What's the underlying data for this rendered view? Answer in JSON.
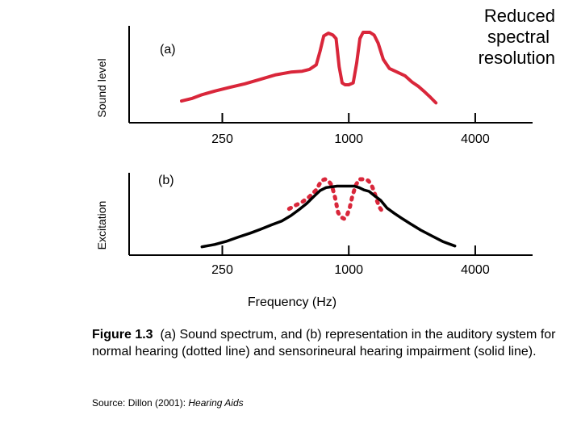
{
  "colors": {
    "spectrum": "#d9263a",
    "normal": "#d9263a",
    "impaired": "#000000",
    "axis": "#000000",
    "annotation": "#000000"
  },
  "chart_data": [
    {
      "id": "a",
      "type": "line",
      "panel_label": "(a)",
      "ylabel": "Sound level",
      "xlabel": "",
      "xscale": "log",
      "xlim": [
        90,
        7500
      ],
      "ylim": [
        0,
        1
      ],
      "xticks": [
        250,
        1000,
        4000
      ],
      "xtick_labels": [
        "250",
        "1000",
        "4000"
      ],
      "annotation": [
        "Reduced",
        "spectral",
        "resolution"
      ],
      "series": [
        {
          "name": "Sound spectrum",
          "style": "solid",
          "color": "#d9263a",
          "x": [
            160,
            180,
            200,
            230,
            270,
            320,
            380,
            450,
            530,
            600,
            650,
            700,
            730,
            760,
            800,
            840,
            870,
            900,
            930,
            960,
            1000,
            1050,
            1090,
            1130,
            1170,
            1210,
            1260,
            1320,
            1380,
            1460,
            1560,
            1700,
            1850,
            2000,
            2150,
            2300,
            2450,
            2600
          ],
          "y": [
            0.24,
            0.27,
            0.31,
            0.35,
            0.39,
            0.43,
            0.48,
            0.53,
            0.56,
            0.57,
            0.59,
            0.64,
            0.79,
            0.96,
            0.99,
            0.97,
            0.93,
            0.62,
            0.44,
            0.42,
            0.42,
            0.44,
            0.66,
            0.93,
            1.0,
            1.0,
            1.0,
            0.97,
            0.88,
            0.7,
            0.6,
            0.56,
            0.52,
            0.45,
            0.4,
            0.34,
            0.28,
            0.22
          ]
        }
      ]
    },
    {
      "id": "b",
      "type": "line",
      "panel_label": "(b)",
      "ylabel": "Excitation",
      "xlabel": "Frequency (Hz)",
      "xscale": "log",
      "xlim": [
        90,
        7500
      ],
      "ylim": [
        0,
        1
      ],
      "xticks": [
        250,
        1000,
        4000
      ],
      "xtick_labels": [
        "250",
        "1000",
        "4000"
      ],
      "series": [
        {
          "name": "Normal hearing",
          "style": "dotted",
          "color": "#d9263a",
          "x": [
            520,
            560,
            600,
            650,
            700,
            740,
            770,
            800,
            830,
            860,
            890,
            920,
            950,
            980,
            1010,
            1040,
            1080,
            1120,
            1160,
            1200,
            1240,
            1280,
            1320,
            1360,
            1400,
            1450
          ],
          "y": [
            0.61,
            0.66,
            0.7,
            0.77,
            0.86,
            0.98,
            1.0,
            0.98,
            0.92,
            0.76,
            0.56,
            0.5,
            0.48,
            0.52,
            0.62,
            0.78,
            0.92,
            1.0,
            1.0,
            1.0,
            0.98,
            0.93,
            0.84,
            0.72,
            0.63,
            0.57
          ]
        },
        {
          "name": "Sensorineural hearing impairment",
          "style": "solid",
          "color": "#000000",
          "x": [
            200,
            230,
            260,
            300,
            340,
            380,
            430,
            480,
            530,
            580,
            630,
            680,
            730,
            780,
            830,
            880,
            940,
            1000,
            1060,
            1120,
            1180,
            1250,
            1330,
            1420,
            1520,
            1650,
            1800,
            2000,
            2200,
            2500,
            2800,
            3200
          ],
          "y": [
            0.11,
            0.14,
            0.18,
            0.24,
            0.29,
            0.34,
            0.4,
            0.45,
            0.52,
            0.6,
            0.68,
            0.77,
            0.85,
            0.89,
            0.9,
            0.91,
            0.91,
            0.91,
            0.91,
            0.89,
            0.86,
            0.84,
            0.78,
            0.72,
            0.62,
            0.55,
            0.48,
            0.4,
            0.33,
            0.25,
            0.18,
            0.12
          ]
        }
      ]
    }
  ],
  "caption": {
    "figure_label": "Figure 1.3",
    "text": "(a) Sound spectrum, and (b) representation in the auditory system for normal hearing (dotted line) and sensorineural hearing impairment (solid line)."
  },
  "source": {
    "prefix": "Source:  Dillon (2001): ",
    "title": "Hearing Aids"
  }
}
